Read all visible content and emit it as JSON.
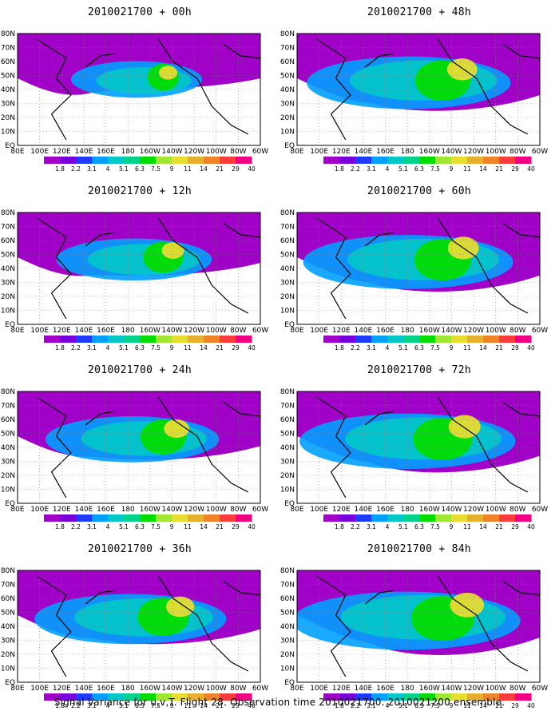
{
  "panels": [
    {
      "title": "2010021700 + 00h",
      "intensity": 0.55,
      "level": 0.2
    },
    {
      "title": "2010021700 + 12h",
      "intensity": 0.7,
      "level": 0.4
    },
    {
      "title": "2010021700 + 24h",
      "intensity": 0.8,
      "level": 0.55
    },
    {
      "title": "2010021700 + 36h",
      "intensity": 0.85,
      "level": 0.7
    },
    {
      "title": "2010021700 + 48h",
      "intensity": 0.9,
      "level": 0.8
    },
    {
      "title": "2010021700 + 60h",
      "intensity": 0.92,
      "level": 0.85
    },
    {
      "title": "2010021700 + 72h",
      "intensity": 0.95,
      "level": 0.9
    },
    {
      "title": "2010021700 + 84h",
      "intensity": 1.0,
      "level": 1.0
    }
  ],
  "lat_labels": [
    "80N",
    "70N",
    "60N",
    "50N",
    "40N",
    "30N",
    "20N",
    "10N",
    "EQ"
  ],
  "lon_labels": [
    "80E",
    "100E",
    "120E",
    "140E",
    "160E",
    "180",
    "160W",
    "140W",
    "120W",
    "100W",
    "80W",
    "60W"
  ],
  "colorbar": {
    "labels": [
      "1.8",
      "2.2",
      "3.1",
      "4",
      "5.1",
      "6.3",
      "7.5",
      "9",
      "11",
      "14",
      "21",
      "29",
      "40"
    ],
    "colors": [
      "#a000c8",
      "#7800dc",
      "#1e3cff",
      "#00a0ff",
      "#00c8c8",
      "#00d28c",
      "#00dc00",
      "#a0e632",
      "#e6dc32",
      "#e6af2d",
      "#f08228",
      "#fa3c3c",
      "#f00082"
    ]
  },
  "footer": "Signal Variance for u,v,T. Flight 28. Observation time 2010021700. 2010021200 ensemble."
}
